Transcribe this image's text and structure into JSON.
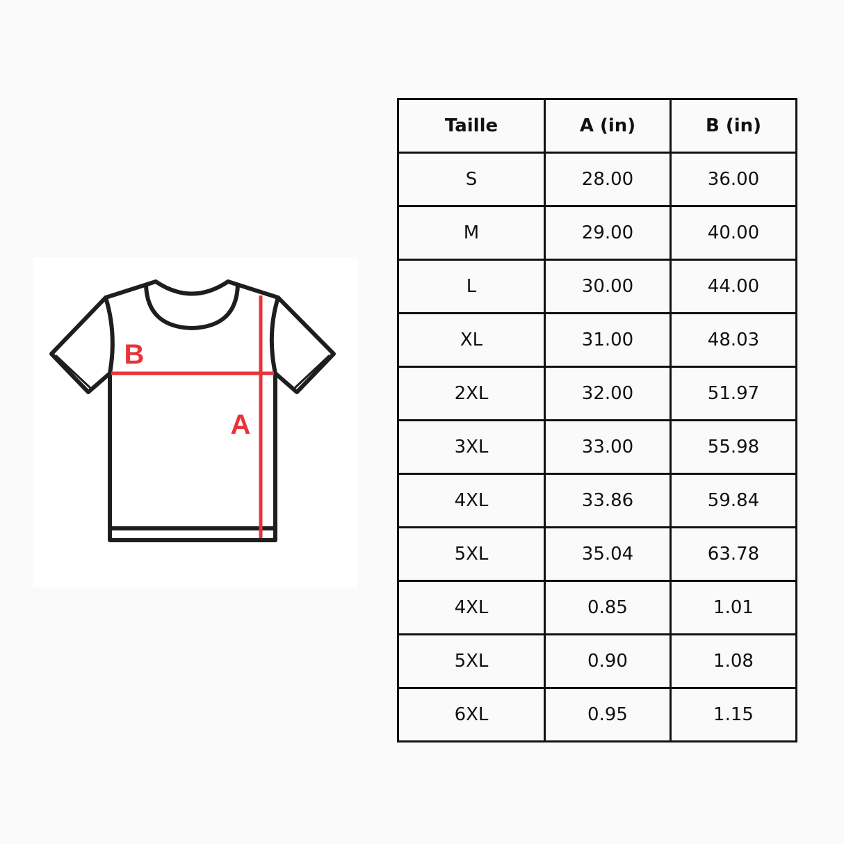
{
  "diagram": {
    "labels": {
      "width": "B",
      "length": "A"
    },
    "colors": {
      "measure_line": "#e8333a",
      "outline": "#1e1e1e"
    }
  },
  "table": {
    "headers": [
      "Taille",
      "A (in)",
      "B (in)"
    ],
    "rows": [
      [
        "S",
        "28.00",
        "36.00"
      ],
      [
        "M",
        "29.00",
        "40.00"
      ],
      [
        "L",
        "30.00",
        "44.00"
      ],
      [
        "XL",
        "31.00",
        "48.03"
      ],
      [
        "2XL",
        "32.00",
        "51.97"
      ],
      [
        "3XL",
        "33.00",
        "55.98"
      ],
      [
        "4XL",
        "33.86",
        "59.84"
      ],
      [
        "5XL",
        "35.04",
        "63.78"
      ],
      [
        "4XL",
        "0.85",
        "1.01"
      ],
      [
        "5XL",
        "0.90",
        "1.08"
      ],
      [
        "6XL",
        "0.95",
        "1.15"
      ]
    ]
  }
}
